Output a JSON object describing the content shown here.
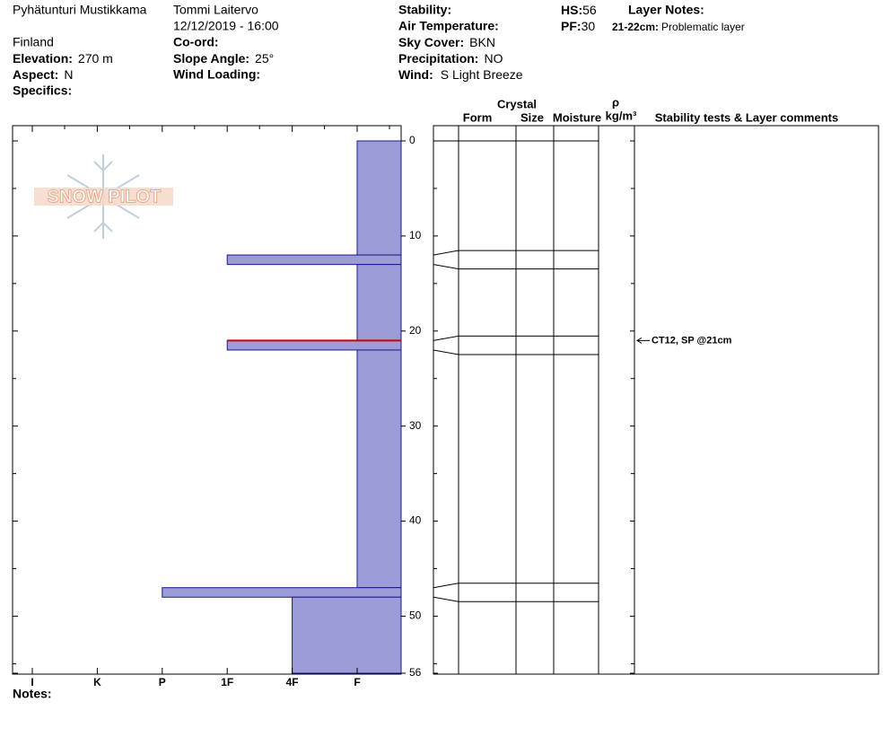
{
  "header": {
    "location": "Pyhätunturi Mustikkama",
    "observer": "Tommi Laitervo",
    "datetime": "12/12/2019 - 16:00",
    "country": "Finland",
    "elevation": {
      "label": "Elevation:",
      "value": "270 m"
    },
    "aspect": {
      "label": "Aspect:",
      "value": "N"
    },
    "specifics": {
      "label": "Specifics:"
    },
    "coord": {
      "label": "Co-ord:"
    },
    "slope_angle": {
      "label": "Slope Angle:",
      "value": "25°"
    },
    "wind_loading": {
      "label": "Wind Loading:"
    },
    "stability": {
      "label": "Stability:"
    },
    "air_temperature": {
      "label": "Air Temperature:"
    },
    "sky_cover": {
      "label": "Sky Cover:",
      "value": "BKN"
    },
    "precipitation": {
      "label": "Precipitation:",
      "value": "NO"
    },
    "wind": {
      "label": "Wind:",
      "value": "S Light Breeze"
    },
    "hs": {
      "label": "HS:",
      "value": 56
    },
    "pf": {
      "label": "PF:",
      "value": 30
    },
    "layer_notes": {
      "label": "Layer Notes:",
      "notes": [
        {
          "range": "21-22cm:",
          "text": "Problematic layer"
        }
      ]
    }
  },
  "logo": "SNOW PILOT",
  "profile": {
    "depth_range": [
      0,
      56
    ],
    "depth_ticks": [
      0,
      10,
      20,
      30,
      40,
      50,
      56
    ],
    "depth_minor_ticks": [
      5,
      15,
      25,
      35,
      45,
      55
    ],
    "hardness_scale": [
      "I",
      "K",
      "P",
      "1F",
      "4F",
      "F"
    ],
    "color": "#9c9cd8",
    "layers": [
      {
        "top": 0,
        "bottom": 12,
        "hardness": "F"
      },
      {
        "top": 12,
        "bottom": 13,
        "hardness": "1F"
      },
      {
        "top": 13,
        "bottom": 21,
        "hardness": "F"
      },
      {
        "top": 21,
        "bottom": 22,
        "hardness": "1F"
      },
      {
        "top": 22,
        "bottom": 47,
        "hardness": "F"
      },
      {
        "top": 47,
        "bottom": 48,
        "hardness": "P"
      },
      {
        "top": 48,
        "bottom": 56,
        "hardness": "4F"
      }
    ]
  },
  "columns": {
    "crystal": "Crystal",
    "form": "Form",
    "size": "Size",
    "moisture": "Moisture",
    "density_symbol": "ρ",
    "density_unit": "kg/m³",
    "comments": "Stability tests & Layer comments"
  },
  "stability_tests": [
    {
      "depth": 21,
      "label": "CT12, SP @21cm",
      "color": "#cc0000"
    }
  ],
  "notes_label": "Notes:"
}
